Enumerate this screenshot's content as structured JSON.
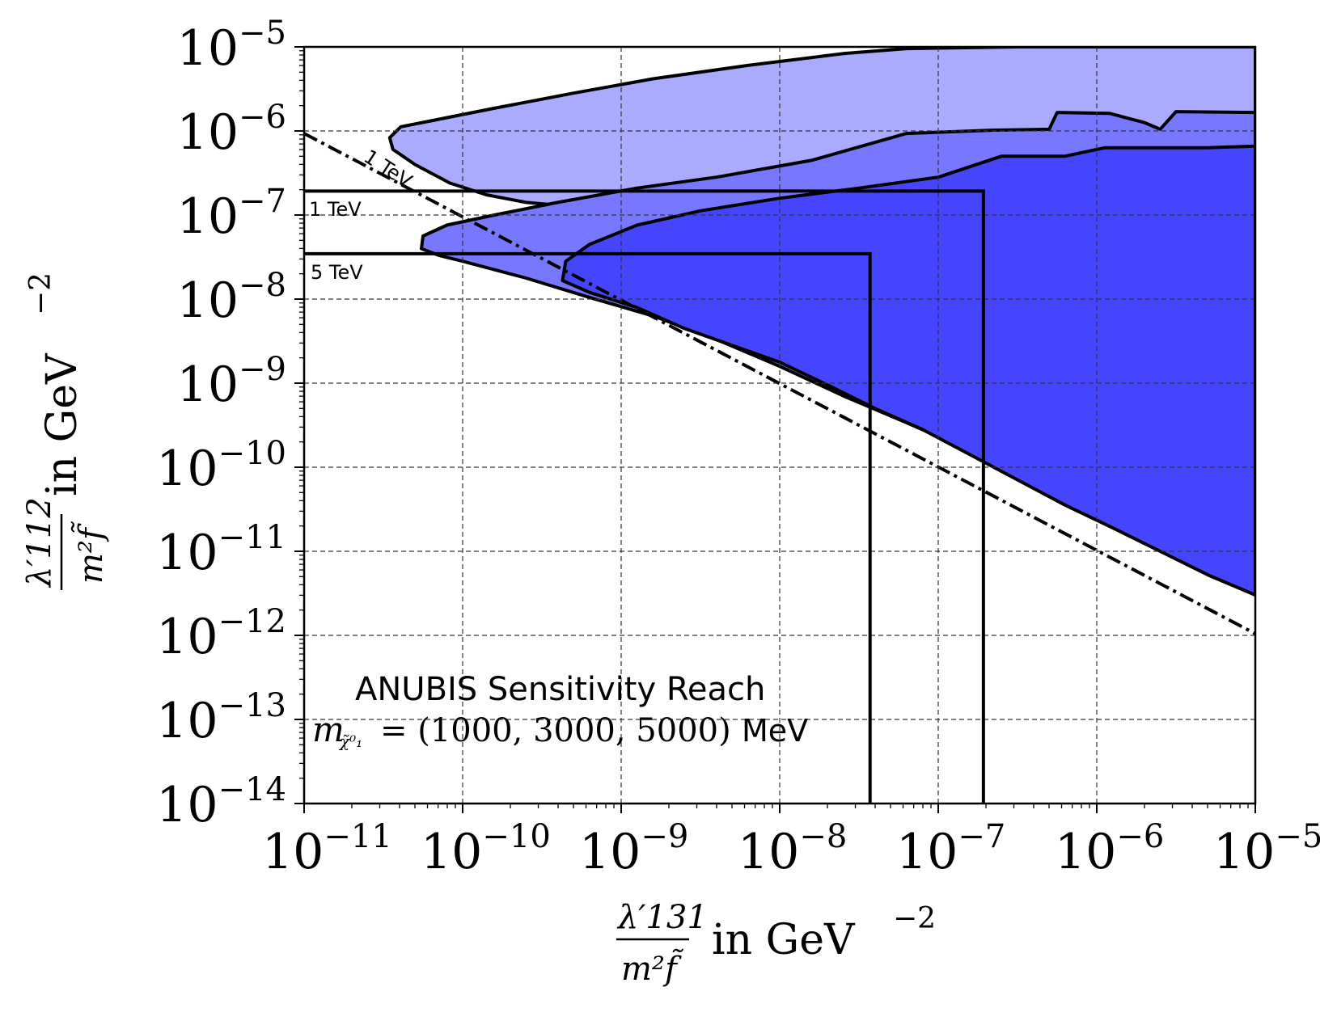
{
  "chart_data": {
    "type": "area",
    "title": "",
    "xlabel": {
      "numerator": "λ′131",
      "denominator": "m²f̃",
      "suffix": "in GeV",
      "exponent": "−2"
    },
    "ylabel": {
      "numerator": "λ′112",
      "denominator": "m²f̃",
      "suffix": "in GeV",
      "exponent": "−2"
    },
    "xscale": "log",
    "yscale": "log",
    "xlim_exp": [
      -11,
      -5
    ],
    "ylim_exp": [
      -14,
      -5
    ],
    "x_ticks": [
      {
        "base": "10",
        "exp": "−11"
      },
      {
        "base": "10",
        "exp": "−10"
      },
      {
        "base": "10",
        "exp": "−9"
      },
      {
        "base": "10",
        "exp": "−8"
      },
      {
        "base": "10",
        "exp": "−7"
      },
      {
        "base": "10",
        "exp": "−6"
      },
      {
        "base": "10",
        "exp": "−5"
      }
    ],
    "y_ticks": [
      {
        "base": "10",
        "exp": "−14"
      },
      {
        "base": "10",
        "exp": "−13"
      },
      {
        "base": "10",
        "exp": "−12"
      },
      {
        "base": "10",
        "exp": "−11"
      },
      {
        "base": "10",
        "exp": "−10"
      },
      {
        "base": "10",
        "exp": "−9"
      },
      {
        "base": "10",
        "exp": "−8"
      },
      {
        "base": "10",
        "exp": "−7"
      },
      {
        "base": "10",
        "exp": "−6"
      },
      {
        "base": "10",
        "exp": "−5"
      }
    ],
    "grid": true,
    "colors": {
      "light": "#aaaaff",
      "medium": "#7777ff",
      "dark": "#4545ff",
      "line": "#000000"
    },
    "regions": [
      {
        "name": "m = 1000 MeV",
        "color": "#aaaaff",
        "points": [
          [
            -5,
            -5
          ],
          [
            -6.5,
            -5
          ],
          [
            -7.2,
            -5.02
          ],
          [
            -7.6,
            -5.08
          ],
          [
            -8.2,
            -5.22
          ],
          [
            -8.8,
            -5.38
          ],
          [
            -9.3,
            -5.55
          ],
          [
            -9.8,
            -5.73
          ],
          [
            -10.2,
            -5.88
          ],
          [
            -10.39,
            -5.95
          ],
          [
            -10.46,
            -6.08
          ],
          [
            -10.44,
            -6.22
          ],
          [
            -10.3,
            -6.4
          ],
          [
            -10.08,
            -6.62
          ],
          [
            -9.85,
            -6.76
          ],
          [
            -9.6,
            -6.85
          ],
          [
            -9.3,
            -6.9
          ],
          [
            -9.0,
            -6.97
          ],
          [
            -8.7,
            -7.05
          ],
          [
            -8.4,
            -7.15
          ],
          [
            -8.0,
            -7.28
          ],
          [
            -7.7,
            -7.32
          ],
          [
            -7.4,
            -7.33
          ],
          [
            -7.0,
            -7.27
          ],
          [
            -6.8,
            -7.25
          ],
          [
            -6.5,
            -7.25
          ],
          [
            -6.2,
            -7.24
          ],
          [
            -5.7,
            -7.22
          ],
          [
            -5.3,
            -7.23
          ],
          [
            -5.1,
            -7.2
          ],
          [
            -5,
            -7.21
          ]
        ]
      },
      {
        "name": "m = 3000 MeV",
        "color": "#7777ff",
        "points": [
          [
            -5,
            -5.78
          ],
          [
            -5.5,
            -5.77
          ],
          [
            -5.6,
            -5.98
          ],
          [
            -5.7,
            -5.9
          ],
          [
            -5.92,
            -5.79
          ],
          [
            -6.25,
            -5.78
          ],
          [
            -6.3,
            -5.98
          ],
          [
            -6.65,
            -5.99
          ],
          [
            -7.2,
            -6.03
          ],
          [
            -7.8,
            -6.35
          ],
          [
            -8.4,
            -6.55
          ],
          [
            -8.9,
            -6.68
          ],
          [
            -9.4,
            -6.85
          ],
          [
            -9.8,
            -7.0
          ],
          [
            -10.1,
            -7.12
          ],
          [
            -10.25,
            -7.25
          ],
          [
            -10.26,
            -7.4
          ],
          [
            -10.15,
            -7.48
          ],
          [
            -10.0,
            -7.55
          ],
          [
            -9.6,
            -7.75
          ],
          [
            -9.2,
            -7.98
          ],
          [
            -8.8,
            -8.2
          ],
          [
            -8.4,
            -8.48
          ],
          [
            -8.0,
            -8.8
          ],
          [
            -7.6,
            -9.15
          ],
          [
            -7.2,
            -9.47
          ],
          [
            -6.8,
            -9.8
          ],
          [
            -6.4,
            -10.15
          ],
          [
            -6.0,
            -10.48
          ],
          [
            -5.7,
            -10.75
          ],
          [
            -5.4,
            -10.98
          ],
          [
            -5.25,
            -11.15
          ],
          [
            -5.1,
            -11.25
          ],
          [
            -5,
            -11.35
          ]
        ]
      },
      {
        "name": "m = 5000 MeV",
        "color": "#4545ff",
        "points": [
          [
            -5,
            -6.18
          ],
          [
            -5.3,
            -6.2
          ],
          [
            -5.95,
            -6.2
          ],
          [
            -6.2,
            -6.3
          ],
          [
            -6.6,
            -6.3
          ],
          [
            -7.0,
            -6.55
          ],
          [
            -7.5,
            -6.68
          ],
          [
            -8.0,
            -6.8
          ],
          [
            -8.5,
            -6.95
          ],
          [
            -8.9,
            -7.12
          ],
          [
            -9.2,
            -7.35
          ],
          [
            -9.35,
            -7.55
          ],
          [
            -9.37,
            -7.78
          ],
          [
            -9.2,
            -7.92
          ],
          [
            -8.9,
            -8.1
          ],
          [
            -8.6,
            -8.35
          ],
          [
            -8.3,
            -8.55
          ],
          [
            -8.0,
            -8.75
          ],
          [
            -7.7,
            -9.02
          ],
          [
            -7.4,
            -9.3
          ],
          [
            -7.1,
            -9.55
          ],
          [
            -6.8,
            -9.85
          ],
          [
            -6.5,
            -10.15
          ],
          [
            -6.2,
            -10.45
          ],
          [
            -5.9,
            -10.72
          ],
          [
            -5.6,
            -11.0
          ],
          [
            -5.3,
            -11.28
          ],
          [
            -5.15,
            -11.4
          ],
          [
            -5,
            -11.52
          ]
        ]
      }
    ],
    "bounds": [
      {
        "label": "1 TeV",
        "x_exp": -6.715,
        "y_exp": -6.715
      },
      {
        "label": "5 TeV",
        "x_exp": -7.43,
        "y_exp": -7.46
      }
    ],
    "diagonal_label": "1 TeV",
    "diagonal_exp": [
      [
        -11,
        -6.03
      ],
      [
        -5,
        -11.98
      ]
    ],
    "annotation_title": "ANUBIS Sensitivity Reach",
    "annotation_mass_symbol": "m",
    "annotation_mass_sub": "χ̃⁰₁",
    "annotation_values": "= (1000, 3000, 5000)",
    "annotation_unit": "MeV"
  }
}
